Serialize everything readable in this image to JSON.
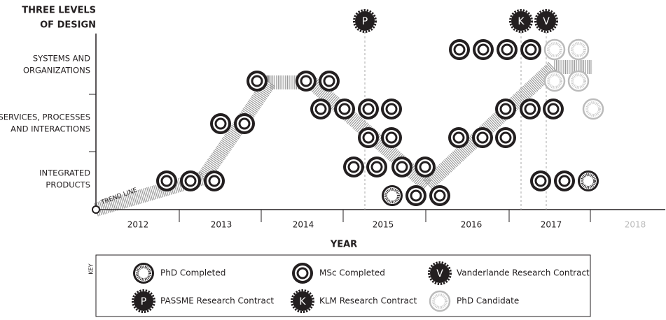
{
  "title": [
    "THREE LEVELS",
    "OF DESIGN"
  ],
  "levels": [
    [
      "SYSTEMS AND",
      "ORGANIZATIONS"
    ],
    [
      "SERVICES, PROCESSES",
      "AND INTERACTIONS"
    ],
    [
      "INTEGRATED",
      "PRODUCTS"
    ]
  ],
  "years": [
    "2012",
    "2013",
    "2014",
    "2015",
    "2016",
    "2017",
    "2018"
  ],
  "x_label": "YEAR",
  "trend_label": "TREND LINE",
  "contracts": [
    {
      "letter": "P"
    },
    {
      "letter": "K"
    },
    {
      "letter": "V"
    }
  ],
  "key": {
    "label": "KEY",
    "items": [
      {
        "label": "PhD Completed"
      },
      {
        "label": "MSc Completed"
      },
      {
        "label": "Vanderlande Research Contract",
        "letter": "V"
      },
      {
        "label": "PASSME Research Contract",
        "letter": "P"
      },
      {
        "label": "KLM Research Contract",
        "letter": "K"
      },
      {
        "label": "PhD Candidate"
      }
    ]
  }
}
